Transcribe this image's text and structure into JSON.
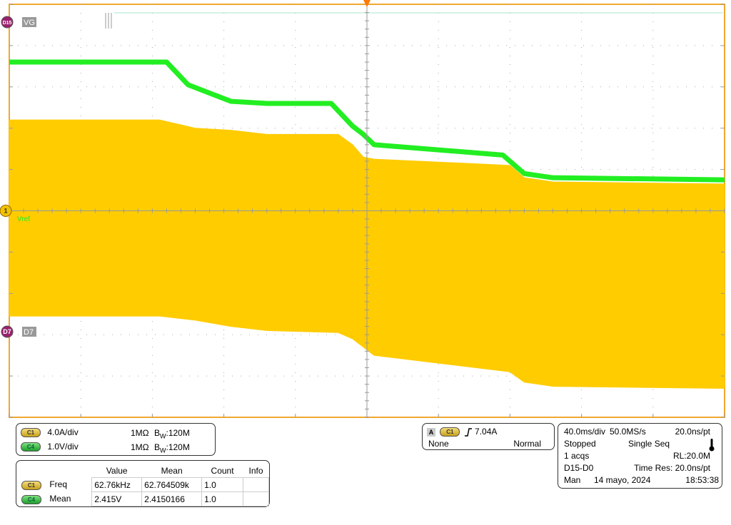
{
  "channels": {
    "vg_label": "VG",
    "d15_badge": "D15",
    "d7_label": "D7",
    "d7_badge": "D7",
    "ch1_badge": "1",
    "vref_label": "Vref"
  },
  "colors": {
    "grid_border": "#f0a830",
    "c1_yellow": "#ffcc00",
    "c4_green": "#22ee22",
    "digital": "#999999"
  },
  "vertical_settings": [
    {
      "badge": "C1",
      "scale": "4.0A/div",
      "impedance": "1MΩ",
      "bw_b": "B",
      "bw_w": "W",
      "bw_value": ":120M"
    },
    {
      "badge": "C4",
      "scale": "1.0V/div",
      "impedance": "1MΩ",
      "bw_b": "B",
      "bw_w": "W",
      "bw_value": ":120M"
    }
  ],
  "trigger": {
    "mode_badge": "A",
    "source_badge": "C1",
    "level": "7.04A",
    "coupling": "None",
    "mode": "Normal"
  },
  "measurements": {
    "headers": [
      "Value",
      "Mean",
      "Count",
      "Info"
    ],
    "rows": [
      {
        "badge": "C1",
        "name": "Freq",
        "value": "62.76kHz",
        "mean": "62.764509k",
        "count": "1.0",
        "info": ""
      },
      {
        "badge": "C4",
        "name": "Mean",
        "value": "2.415V",
        "mean": "2.4150166",
        "count": "1.0",
        "info": ""
      }
    ]
  },
  "acquisition": {
    "timebase": "40.0ms/div",
    "sample_rate": "50.0MS/s",
    "time_per_point": "20.0ns/pt",
    "state": "Stopped",
    "sequence": "Single Seq",
    "acqs": "1 acqs",
    "record_length": "RL:20.0M",
    "digital_range": "D15-D0",
    "time_res": "Time Res: 20.0ns/pt",
    "trigger_mode": "Man",
    "date": "14 mayo, 2024",
    "time": "18:53:38"
  },
  "chart_data": {
    "type": "line",
    "x_divisions": 10,
    "y_divisions": 10,
    "x_unit_per_div": "40.0ms",
    "grid": true,
    "series": [
      {
        "name": "C4",
        "color": "#22ee22",
        "x_div": [
          0,
          2.2,
          2.5,
          3.1,
          3.6,
          4.5,
          4.8,
          4.95,
          5.1,
          6.9,
          7.2,
          7.6,
          10
        ],
        "y_div": [
          -3.6,
          -3.6,
          -3.05,
          -2.65,
          -2.6,
          -2.6,
          -2.05,
          -1.85,
          -1.6,
          -1.35,
          -0.9,
          -0.8,
          -0.75
        ]
      },
      {
        "name": "C1",
        "color": "#ffcc00",
        "x_div": [
          0,
          2.1,
          2.6,
          3.1,
          3.6,
          4.6,
          4.8,
          4.95,
          5.1,
          7.0,
          7.2,
          7.6,
          10
        ],
        "y_upper_div": [
          -2.2,
          -2.2,
          -2.0,
          -1.95,
          -1.85,
          -1.85,
          -1.6,
          -1.3,
          -1.25,
          -1.1,
          -0.8,
          -0.7,
          -0.65
        ],
        "y_lower_div": [
          2.55,
          2.55,
          2.65,
          2.8,
          2.9,
          2.95,
          3.1,
          3.3,
          3.5,
          3.9,
          4.15,
          4.25,
          4.3
        ]
      }
    ]
  }
}
